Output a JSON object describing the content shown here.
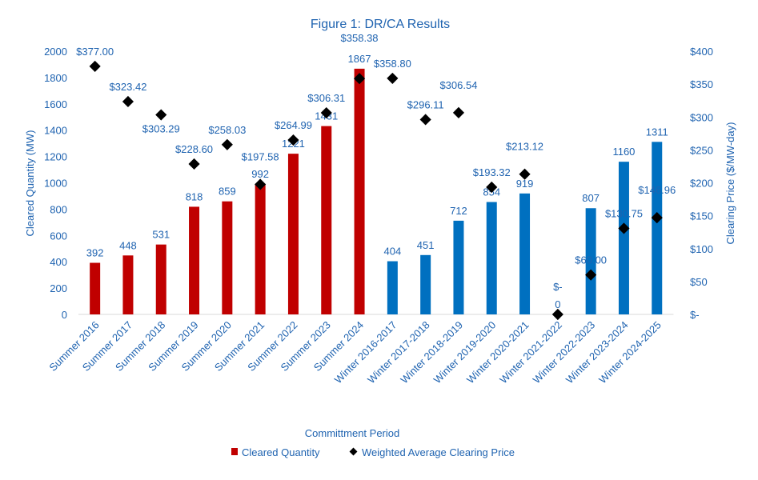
{
  "chart_data": {
    "type": "bar+scatter",
    "title": "Figure 1: DR/CA Results",
    "xlabel": "Committment Period",
    "ylabel": "Cleared Quantity (MW)",
    "y2label": "Clearing Price ($/MW-day)",
    "ylim": [
      0,
      2000
    ],
    "y2lim": [
      0,
      400
    ],
    "yticks": [
      "0",
      "200",
      "400",
      "600",
      "800",
      "1000",
      "1200",
      "1400",
      "1600",
      "1800",
      "2000"
    ],
    "y2ticks": [
      "$-",
      "$50",
      "$100",
      "$150",
      "$200",
      "$250",
      "$300",
      "$350",
      "$400"
    ],
    "legend_position": "bottom",
    "grid": false,
    "categories": [
      "Summer 2016",
      "Summer 2017",
      "Summer 2018",
      "Summer 2019",
      "Summer 2020",
      "Summer 2021",
      "Summer 2022",
      "Summer 2023",
      "Summer 2024",
      "Winter 2016-2017",
      "Winter 2017-2018",
      "Winter 2018-2019",
      "Winter 2019-2020",
      "Winter 2020-2021",
      "Winter 2021-2022",
      "Winter 2022-2023",
      "Winter 2023-2024",
      "Winter 2024-2025"
    ],
    "series": [
      {
        "name": "Cleared Quantity",
        "type": "bar",
        "values": [
          392,
          448,
          531,
          818,
          859,
          992,
          1221,
          1431,
          1867,
          404,
          451,
          712,
          854,
          919,
          0,
          807,
          1160,
          1311
        ],
        "colors": {
          "summer": "#c00000",
          "winter": "#0070c0"
        }
      },
      {
        "name": "Weighted Average Clearing Price",
        "type": "scatter",
        "values": [
          377.0,
          323.42,
          303.29,
          228.6,
          258.03,
          197.58,
          264.99,
          306.31,
          358.38,
          358.8,
          296.11,
          306.54,
          193.32,
          213.12,
          0,
          60.0,
          130.75,
          146.96
        ],
        "labels": [
          "$377.00",
          "$323.42",
          "$303.29",
          "$228.60",
          "$258.03",
          "$197.58",
          "$264.99",
          "$306.31",
          "$358.38",
          "$358.80",
          "$296.11",
          "$306.54",
          "$193.32",
          "$213.12",
          "$-",
          "$60.00",
          "$130.75",
          "$146.96"
        ],
        "color": "#000000"
      }
    ]
  }
}
